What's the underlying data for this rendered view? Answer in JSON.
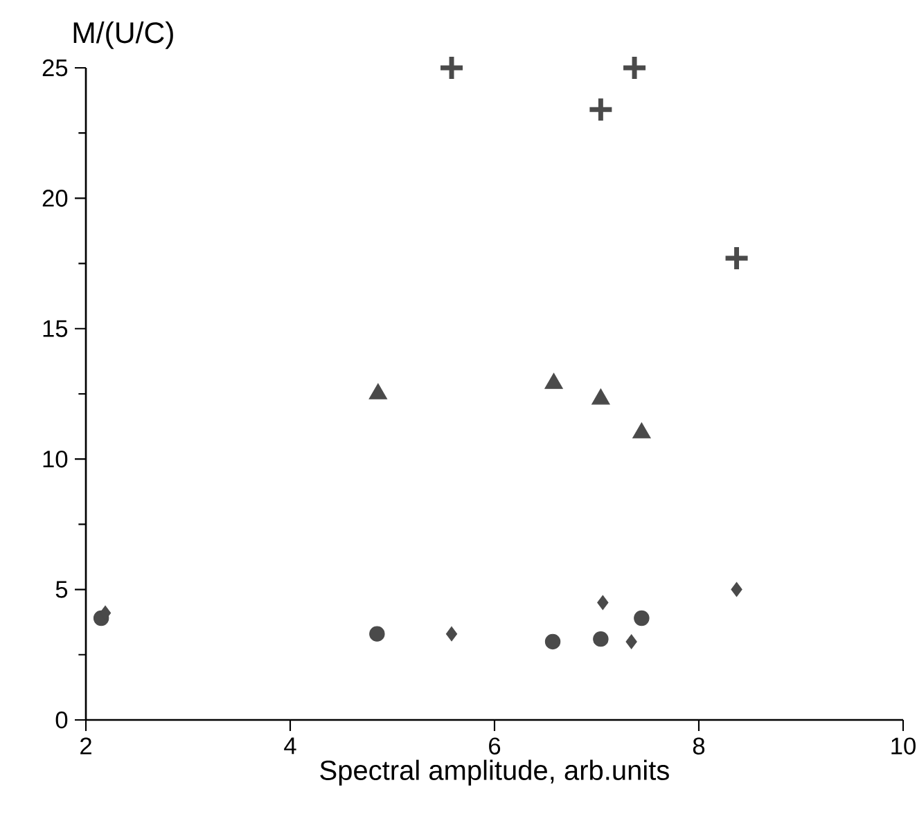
{
  "chart_data": {
    "type": "scatter",
    "xlabel": "Spectral amplitude, arb.units",
    "ylabel": "M/(U/C)",
    "xlim": [
      2,
      10
    ],
    "ylim": [
      0,
      25
    ],
    "xticks": [
      2,
      4,
      6,
      8,
      10
    ],
    "yticks": [
      0,
      5,
      10,
      15,
      20,
      25
    ],
    "grid": false,
    "series": [
      {
        "color": "#4a4a4a",
        "marker": "cross",
        "x": [
          5.58,
          7.04,
          7.37,
          8.37
        ],
        "values": [
          25,
          23.4,
          25,
          17.7
        ]
      },
      {
        "color": "#4a4a4a",
        "marker": "triangle",
        "x": [
          4.86,
          6.58,
          7.04,
          7.44
        ],
        "values": [
          12.5,
          12.9,
          12.3,
          11.0
        ]
      },
      {
        "color": "#4a4a4a",
        "marker": "circle",
        "x": [
          2.15,
          4.85,
          6.57,
          7.04,
          7.44
        ],
        "values": [
          3.9,
          3.3,
          3.0,
          3.1,
          3.9
        ]
      },
      {
        "color": "#4a4a4a",
        "marker": "diamond",
        "x": [
          2.19,
          5.58,
          7.06,
          7.34,
          8.37
        ],
        "values": [
          4.1,
          3.3,
          4.5,
          3.0,
          5.0
        ]
      }
    ]
  }
}
